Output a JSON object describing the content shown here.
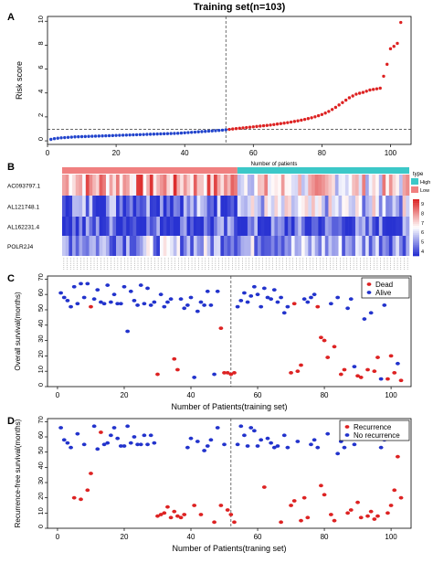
{
  "figure_title": "Training set(n=103)",
  "panels": {
    "A": {
      "letter": "A"
    },
    "B": {
      "letter": "B"
    },
    "C": {
      "letter": "C"
    },
    "D": {
      "letter": "D"
    }
  },
  "chart_data": [
    {
      "panel": "A",
      "type": "scatter",
      "ylabel": "Risk score",
      "xlabel": "",
      "xlim": [
        0,
        106
      ],
      "ylim": [
        -0.3,
        10.4
      ],
      "xticks": [
        0,
        20,
        40,
        60,
        80,
        100
      ],
      "yticks": [
        0,
        2,
        4,
        6,
        8,
        10
      ],
      "cutoff_index": 52,
      "cutoff_score": 0.95,
      "colors": {
        "low": "#2244cc",
        "high": "#dd2222"
      },
      "risk_scores": [
        0.12,
        0.18,
        0.22,
        0.25,
        0.27,
        0.29,
        0.31,
        0.33,
        0.34,
        0.35,
        0.36,
        0.37,
        0.38,
        0.39,
        0.4,
        0.41,
        0.42,
        0.43,
        0.44,
        0.45,
        0.46,
        0.47,
        0.48,
        0.49,
        0.5,
        0.51,
        0.52,
        0.53,
        0.54,
        0.55,
        0.56,
        0.57,
        0.58,
        0.59,
        0.6,
        0.61,
        0.62,
        0.63,
        0.65,
        0.67,
        0.69,
        0.71,
        0.73,
        0.75,
        0.77,
        0.79,
        0.81,
        0.83,
        0.85,
        0.87,
        0.89,
        0.92,
        0.96,
        0.99,
        1.02,
        1.05,
        1.08,
        1.11,
        1.14,
        1.17,
        1.2,
        1.23,
        1.26,
        1.29,
        1.32,
        1.36,
        1.4,
        1.44,
        1.48,
        1.52,
        1.57,
        1.62,
        1.67,
        1.73,
        1.79,
        1.86,
        1.93,
        2.01,
        2.1,
        2.2,
        2.32,
        2.46,
        2.62,
        2.8,
        3.0,
        3.2,
        3.4,
        3.6,
        3.75,
        3.9,
        3.98,
        4.05,
        4.15,
        4.25,
        4.3,
        4.35,
        4.4,
        5.4,
        6.4,
        7.7,
        7.9,
        8.15,
        9.9
      ]
    },
    {
      "panel": "B",
      "type": "heatmap",
      "header_label": "Number of patients",
      "genes": [
        "AC093797.1",
        "AL121748.1",
        "AL162231.4",
        "POLR2J4"
      ],
      "group_split": 52,
      "legend_title": "type",
      "legend_groups": [
        {
          "name": "High",
          "color": "#3cc8c8"
        },
        {
          "name": "Low",
          "color": "#f08080"
        }
      ],
      "scale_ticks": [
        4,
        5,
        6,
        7,
        8,
        9
      ]
    },
    {
      "panel": "C",
      "type": "scatter",
      "ylabel": "Overall survival(months)",
      "xlabel": "Number of Patients(training set)",
      "xlim": [
        -3,
        106
      ],
      "ylim": [
        0,
        72
      ],
      "xticks": [
        0,
        20,
        40,
        60,
        80,
        100
      ],
      "yticks": [
        0,
        10,
        20,
        30,
        40,
        50,
        60,
        70
      ],
      "cutoff_index": 52,
      "legend": [
        {
          "name": "Dead",
          "color": "#dd2222"
        },
        {
          "name": "Alive",
          "color": "#2233cc"
        }
      ],
      "status": [
        0,
        0,
        0,
        0,
        0,
        0,
        0,
        0,
        0,
        1,
        0,
        0,
        0,
        0,
        0,
        0,
        0,
        0,
        0,
        0,
        0,
        0,
        0,
        0,
        0,
        0,
        0,
        0,
        0,
        1,
        0,
        0,
        0,
        0,
        1,
        1,
        0,
        0,
        0,
        0,
        0,
        0,
        0,
        0,
        0,
        0,
        0,
        0,
        1,
        1,
        1,
        1,
        1,
        0,
        0,
        0,
        0,
        0,
        0,
        0,
        0,
        0,
        0,
        0,
        0,
        0,
        0,
        0,
        0,
        1,
        1,
        1,
        1,
        0,
        0,
        0,
        0,
        1,
        1,
        1,
        1,
        0,
        1,
        0,
        1,
        1,
        0,
        0,
        0,
        1,
        1,
        0,
        1,
        0,
        1,
        1,
        0,
        0,
        1,
        1,
        1,
        0,
        1
      ],
      "survival_months": [
        61,
        58,
        56,
        52,
        65,
        54,
        67,
        58,
        67,
        52,
        57,
        63,
        55,
        54,
        66,
        55,
        60,
        54,
        54,
        65,
        36,
        62,
        56,
        53,
        66,
        54,
        64,
        53,
        55,
        8,
        60,
        52,
        55,
        57,
        18,
        11,
        57,
        51,
        53,
        58,
        6,
        49,
        55,
        53,
        62,
        53,
        8,
        62,
        38,
        9,
        9,
        8,
        9,
        52,
        56,
        61,
        55,
        59,
        65,
        60,
        52,
        64,
        58,
        57,
        63,
        55,
        58,
        48,
        52,
        9,
        54,
        10,
        14,
        57,
        55,
        58,
        60,
        52,
        32,
        30,
        19,
        54,
        26,
        58,
        8,
        11,
        51,
        57,
        13,
        7,
        6,
        44,
        11,
        48,
        10,
        19,
        5,
        53,
        5,
        20,
        9,
        15,
        4
      ]
    },
    {
      "panel": "D",
      "type": "scatter",
      "ylabel": "Recurrence-free survival(months)",
      "xlabel": "Number of Patients(traning set)",
      "xlim": [
        -3,
        106
      ],
      "ylim": [
        0,
        72
      ],
      "xticks": [
        0,
        20,
        40,
        60,
        80,
        100
      ],
      "yticks": [
        0,
        10,
        20,
        30,
        40,
        50,
        60,
        70
      ],
      "cutoff_index": 52,
      "legend": [
        {
          "name": "Recurrence",
          "color": "#dd2222"
        },
        {
          "name": "No recurrence",
          "color": "#2233cc"
        }
      ],
      "status": [
        0,
        0,
        0,
        0,
        1,
        0,
        1,
        0,
        1,
        1,
        0,
        0,
        1,
        0,
        0,
        0,
        0,
        0,
        0,
        0,
        0,
        0,
        0,
        0,
        0,
        0,
        0,
        0,
        0,
        1,
        1,
        1,
        1,
        1,
        1,
        1,
        1,
        1,
        0,
        0,
        1,
        0,
        1,
        0,
        0,
        0,
        1,
        0,
        1,
        0,
        1,
        1,
        1,
        0,
        0,
        0,
        0,
        0,
        0,
        0,
        0,
        1,
        0,
        0,
        0,
        0,
        1,
        0,
        0,
        1,
        1,
        0,
        1,
        1,
        1,
        0,
        0,
        0,
        1,
        1,
        0,
        1,
        1,
        0,
        0,
        0,
        1,
        1,
        0,
        1,
        1,
        0,
        1,
        1,
        1,
        1,
        0,
        0,
        1,
        1,
        1,
        1,
        1
      ],
      "survival_months": [
        66,
        58,
        56,
        53,
        20,
        62,
        19,
        55,
        25,
        36,
        67,
        52,
        63,
        55,
        56,
        61,
        66,
        59,
        54,
        54,
        67,
        56,
        60,
        55,
        55,
        61,
        55,
        61,
        56,
        8,
        9,
        10,
        14,
        7,
        11,
        8,
        7,
        9,
        53,
        59,
        15,
        57,
        9,
        51,
        54,
        58,
        4,
        66,
        15,
        55,
        12,
        9,
        4,
        55,
        67,
        61,
        54,
        66,
        64,
        54,
        58,
        27,
        59,
        56,
        53,
        54,
        4,
        61,
        53,
        15,
        18,
        57,
        5,
        20,
        7,
        55,
        58,
        53,
        28,
        22,
        62,
        9,
        5,
        49,
        57,
        53,
        10,
        12,
        55,
        17,
        7,
        66,
        8,
        11,
        6,
        8,
        53,
        58,
        10,
        15,
        25,
        47,
        20
      ]
    }
  ]
}
